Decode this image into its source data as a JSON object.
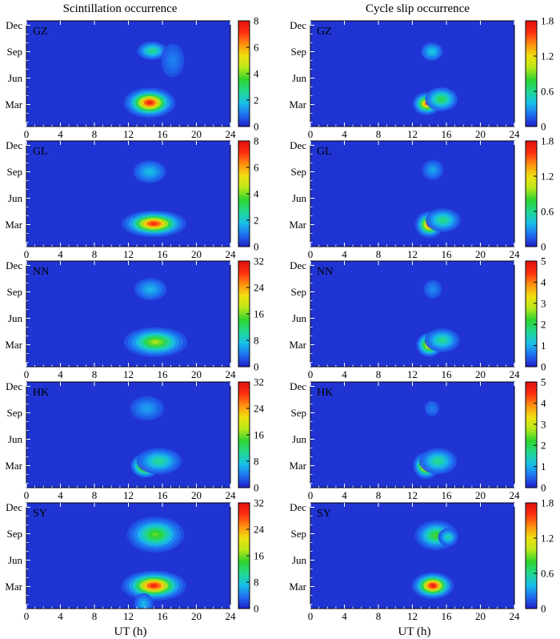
{
  "columns": [
    {
      "title": "Scintillation occurrence"
    },
    {
      "title": "Cycle slip occurrence"
    }
  ],
  "xlabel": "UT (h)",
  "stations": [
    "GZ",
    "GL",
    "NN",
    "HK",
    "SY"
  ],
  "x_ticks": [
    0,
    4,
    8,
    12,
    16,
    20,
    24
  ],
  "y_ticks": [
    "Mar",
    "Jun",
    "Sep",
    "Dec"
  ],
  "colormap": [
    "#1f1fc8",
    "#1f6ef0",
    "#18c0e8",
    "#22d890",
    "#2fd42f",
    "#b8e81a",
    "#f0e010",
    "#ff9010",
    "#ff3010",
    "#e01010"
  ],
  "chart_data": [
    {
      "type": "heatmap",
      "panel": "scintillation",
      "station": "GZ",
      "xlim": [
        0,
        24
      ],
      "colorbar_ticks": [
        "0",
        "2",
        "4",
        "6",
        "8"
      ],
      "vmax": 8,
      "blobs": [
        {
          "ut": 14.5,
          "month": 3.2,
          "w_ut": 1.6,
          "w_m": 0.9,
          "v": 7.6
        },
        {
          "ut": 14.8,
          "month": 9.1,
          "w_ut": 1.2,
          "w_m": 0.7,
          "v": 2.6
        },
        {
          "ut": 17.2,
          "month": 8.0,
          "w_ut": 1.3,
          "w_m": 1.8,
          "v": 0.9
        }
      ]
    },
    {
      "type": "heatmap",
      "panel": "cycle_slip",
      "station": "GZ",
      "xlim": [
        0,
        24
      ],
      "colorbar_ticks": [
        "0",
        "0.6",
        "1.2",
        "1.8"
      ],
      "vmax": 1.8,
      "blobs": [
        {
          "ut": 13.7,
          "month": 3.1,
          "w_ut": 0.9,
          "w_m": 0.7,
          "v": 1.5
        },
        {
          "ut": 15.4,
          "month": 3.6,
          "w_ut": 1.3,
          "w_m": 0.9,
          "v": 0.7
        },
        {
          "ut": 14.3,
          "month": 9.0,
          "w_ut": 1.0,
          "w_m": 0.8,
          "v": 0.4
        }
      ]
    },
    {
      "type": "heatmap",
      "panel": "scintillation",
      "station": "GL",
      "xlim": [
        0,
        24
      ],
      "colorbar_ticks": [
        "0",
        "2",
        "4",
        "6",
        "8"
      ],
      "vmax": 8,
      "blobs": [
        {
          "ut": 15.0,
          "month": 3.1,
          "w_ut": 2.0,
          "w_m": 0.8,
          "v": 7.4
        },
        {
          "ut": 14.5,
          "month": 9.0,
          "w_ut": 1.5,
          "w_m": 1.0,
          "v": 1.6
        }
      ]
    },
    {
      "type": "heatmap",
      "panel": "cycle_slip",
      "station": "GL",
      "xlim": [
        0,
        24
      ],
      "colorbar_ticks": [
        "0",
        "0.6",
        "1.2",
        "1.8"
      ],
      "vmax": 1.8,
      "blobs": [
        {
          "ut": 14.0,
          "month": 3.0,
          "w_ut": 0.9,
          "w_m": 0.8,
          "v": 1.6
        },
        {
          "ut": 15.6,
          "month": 3.5,
          "w_ut": 1.4,
          "w_m": 0.9,
          "v": 0.6
        },
        {
          "ut": 14.4,
          "month": 9.2,
          "w_ut": 1.0,
          "w_m": 0.9,
          "v": 0.3
        }
      ]
    },
    {
      "type": "heatmap",
      "panel": "scintillation",
      "station": "NN",
      "xlim": [
        0,
        24
      ],
      "colorbar_ticks": [
        "0",
        "8",
        "16",
        "24",
        "32"
      ],
      "vmax": 32,
      "blobs": [
        {
          "ut": 15.2,
          "month": 3.3,
          "w_ut": 2.2,
          "w_m": 1.0,
          "v": 17
        },
        {
          "ut": 14.6,
          "month": 9.3,
          "w_ut": 1.5,
          "w_m": 1.0,
          "v": 6
        }
      ]
    },
    {
      "type": "heatmap",
      "panel": "cycle_slip",
      "station": "NN",
      "xlim": [
        0,
        24
      ],
      "colorbar_ticks": [
        "0",
        "1",
        "2",
        "3",
        "4",
        "5"
      ],
      "vmax": 5,
      "blobs": [
        {
          "ut": 14.0,
          "month": 3.0,
          "w_ut": 0.9,
          "w_m": 0.8,
          "v": 3.6
        },
        {
          "ut": 15.5,
          "month": 3.5,
          "w_ut": 1.4,
          "w_m": 0.9,
          "v": 1.6
        },
        {
          "ut": 14.4,
          "month": 9.3,
          "w_ut": 1.0,
          "w_m": 1.0,
          "v": 0.6
        }
      ]
    },
    {
      "type": "heatmap",
      "panel": "scintillation",
      "station": "HK",
      "xlim": [
        0,
        24
      ],
      "colorbar_ticks": [
        "0",
        "8",
        "16",
        "24",
        "32"
      ],
      "vmax": 32,
      "blobs": [
        {
          "ut": 14.0,
          "month": 3.0,
          "w_ut": 1.0,
          "w_m": 0.8,
          "v": 25
        },
        {
          "ut": 15.6,
          "month": 3.5,
          "w_ut": 1.8,
          "w_m": 1.0,
          "v": 10
        },
        {
          "ut": 14.2,
          "month": 9.5,
          "w_ut": 1.6,
          "w_m": 1.1,
          "v": 5
        }
      ]
    },
    {
      "type": "heatmap",
      "panel": "cycle_slip",
      "station": "HK",
      "xlim": [
        0,
        24
      ],
      "colorbar_ticks": [
        "0",
        "1",
        "2",
        "3",
        "4",
        "5"
      ],
      "vmax": 5,
      "blobs": [
        {
          "ut": 13.6,
          "month": 3.0,
          "w_ut": 0.8,
          "w_m": 0.8,
          "v": 4.7
        },
        {
          "ut": 15.0,
          "month": 3.5,
          "w_ut": 1.5,
          "w_m": 1.0,
          "v": 1.6
        },
        {
          "ut": 14.3,
          "month": 9.5,
          "w_ut": 1.0,
          "w_m": 1.0,
          "v": 0.5
        }
      ]
    },
    {
      "type": "heatmap",
      "panel": "scintillation",
      "station": "SY",
      "xlim": [
        0,
        24
      ],
      "colorbar_ticks": [
        "0",
        "8",
        "16",
        "24",
        "32"
      ],
      "vmax": 32,
      "blobs": [
        {
          "ut": 15.0,
          "month": 3.1,
          "w_ut": 2.0,
          "w_m": 0.9,
          "v": 30
        },
        {
          "ut": 15.2,
          "month": 8.9,
          "w_ut": 2.0,
          "w_m": 1.2,
          "v": 15
        },
        {
          "ut": 13.8,
          "month": 1.0,
          "w_ut": 0.9,
          "w_m": 1.0,
          "v": 6
        }
      ]
    },
    {
      "type": "heatmap",
      "panel": "cycle_slip",
      "station": "SY",
      "xlim": [
        0,
        24
      ],
      "colorbar_ticks": [
        "0",
        "0.6",
        "1.2",
        "1.8"
      ],
      "vmax": 1.8,
      "blobs": [
        {
          "ut": 14.4,
          "month": 3.1,
          "w_ut": 1.3,
          "w_m": 0.8,
          "v": 1.75
        },
        {
          "ut": 14.8,
          "month": 8.8,
          "w_ut": 1.5,
          "w_m": 1.0,
          "v": 0.8
        },
        {
          "ut": 16.2,
          "month": 8.6,
          "w_ut": 0.8,
          "w_m": 0.7,
          "v": 0.5
        }
      ]
    }
  ]
}
